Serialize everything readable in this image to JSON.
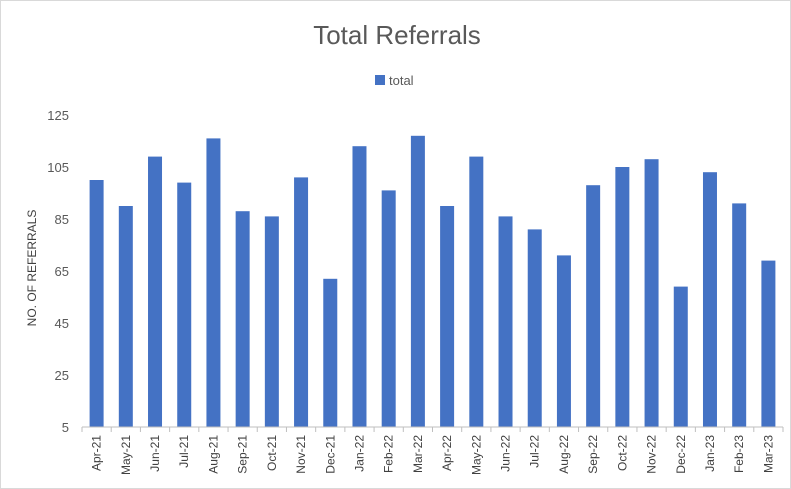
{
  "chart_data": {
    "type": "bar",
    "title": "Total Referrals",
    "xlabel": "",
    "ylabel": "NO. OF REFERRALS",
    "ylim": [
      5,
      125
    ],
    "yticks": [
      5,
      25,
      45,
      65,
      85,
      105,
      125
    ],
    "grid": false,
    "legend_position": "top",
    "bar_color": "#4472C4",
    "categories": [
      "Apr-21",
      "May-21",
      "Jun-21",
      "Jul-21",
      "Aug-21",
      "Sep-21",
      "Oct-21",
      "Nov-21",
      "Dec-21",
      "Jan-22",
      "Feb-22",
      "Mar-22",
      "Apr-22",
      "May-22",
      "Jun-22",
      "Jul-22",
      "Aug-22",
      "Sep-22",
      "Oct-22",
      "Nov-22",
      "Dec-22",
      "Jan-23",
      "Feb-23",
      "Mar-23"
    ],
    "series": [
      {
        "name": "total",
        "values": [
          100,
          90,
          109,
          99,
          116,
          88,
          86,
          101,
          62,
          113,
          96,
          117,
          90,
          109,
          86,
          81,
          71,
          98,
          105,
          108,
          59,
          103,
          91,
          69
        ]
      }
    ]
  }
}
